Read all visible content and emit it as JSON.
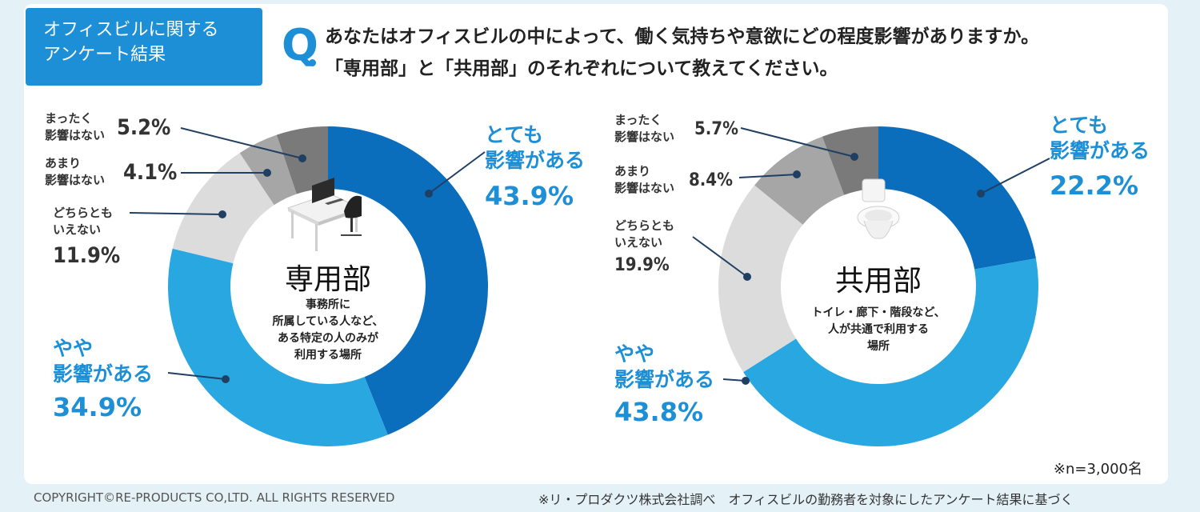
{
  "header": {
    "tag_line1": "オフィスビルに関する",
    "tag_line2": "アンケート結果",
    "q_letter": "Q",
    "question_line1": "あなたはオフィスビルの中によって、働く気持ちや意欲にどの程度影響がありますか。",
    "question_line2": "「専用部」と「共用部」のそれぞれについて教えてください。"
  },
  "colors": {
    "very": "#0a6ebd",
    "somewhat": "#29a7e1",
    "neutral": "#dcdcdc",
    "not_much": "#a6a6a6",
    "not_at_all": "#7a7a7a",
    "accent": "#1c8fd6"
  },
  "icons": {
    "left_center": "office-desk-icon",
    "right_center": "toilet-icon"
  },
  "chart_data": [
    {
      "type": "pie",
      "variant": "donut",
      "center_label": "専用部",
      "center_description": [
        "事務所に",
        "所属している人など、",
        "ある特定の人のみが",
        "利用する場所"
      ],
      "slices": [
        {
          "label_lines": [
            "とても",
            "影響がある"
          ],
          "value": 43.9,
          "pct": "43.9%",
          "color": "#0a6ebd"
        },
        {
          "label_lines": [
            "やや",
            "影響がある"
          ],
          "value": 34.9,
          "pct": "34.9%",
          "color": "#29a7e1"
        },
        {
          "label_lines": [
            "どちらとも",
            "いえない"
          ],
          "value": 11.9,
          "pct": "11.9%",
          "color": "#dcdcdc"
        },
        {
          "label_lines": [
            "あまり",
            "影響はない"
          ],
          "value": 4.1,
          "pct": "4.1%",
          "color": "#a6a6a6"
        },
        {
          "label_lines": [
            "まったく",
            "影響はない"
          ],
          "value": 5.2,
          "pct": "5.2%",
          "color": "#7a7a7a"
        }
      ]
    },
    {
      "type": "pie",
      "variant": "donut",
      "center_label": "共用部",
      "center_description": [
        "トイレ・廊下・階段など、",
        "人が共通で利用する",
        "場所"
      ],
      "slices": [
        {
          "label_lines": [
            "とても",
            "影響がある"
          ],
          "value": 22.2,
          "pct": "22.2%",
          "color": "#0a6ebd"
        },
        {
          "label_lines": [
            "やや",
            "影響がある"
          ],
          "value": 43.8,
          "pct": "43.8%",
          "color": "#29a7e1"
        },
        {
          "label_lines": [
            "どちらとも",
            "いえない"
          ],
          "value": 19.9,
          "pct": "19.9%",
          "color": "#dcdcdc"
        },
        {
          "label_lines": [
            "あまり",
            "影響はない"
          ],
          "value": 8.4,
          "pct": "8.4%",
          "color": "#a6a6a6"
        },
        {
          "label_lines": [
            "まったく",
            "影響はない"
          ],
          "value": 5.7,
          "pct": "5.7%",
          "color": "#7a7a7a"
        }
      ]
    }
  ],
  "notes": {
    "sample": "※n=3,000名",
    "copyright": "COPYRIGHT©RE-PRODUCTS CO,LTD. ALL RIGHTS RESERVED",
    "source": "※リ・プロダクツ株式会社調べ　オフィスビルの勤務者を対象にしたアンケート結果に基づく"
  }
}
